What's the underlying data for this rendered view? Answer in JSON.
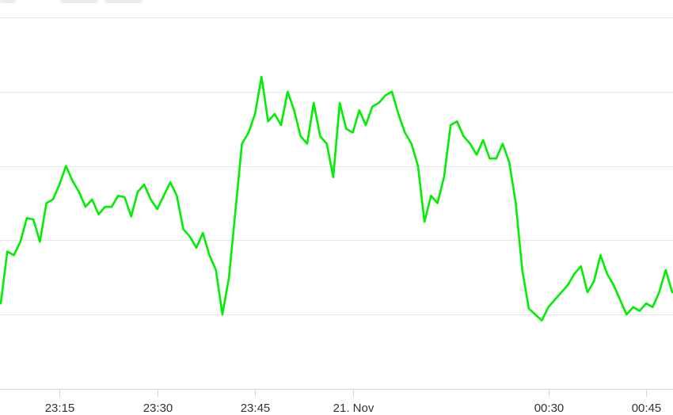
{
  "toolbar": {
    "tabs": [
      "",
      "",
      ""
    ]
  },
  "chart_data": {
    "type": "line",
    "title": "",
    "xlabel": "",
    "ylabel": "",
    "xlim": [
      "2023-11-20T23:06",
      "2023-11-21T00:49"
    ],
    "ylim": [
      0,
      5
    ],
    "grid": true,
    "legend": "none",
    "line_color": "#00ee00",
    "x_ticks": [
      {
        "label": "23:15",
        "time": "2023-11-20T23:15"
      },
      {
        "label": "23:30",
        "time": "2023-11-20T23:30"
      },
      {
        "label": "23:45",
        "time": "2023-11-20T23:45"
      },
      {
        "label": "21. Nov",
        "time": "2023-11-21T00:00"
      },
      {
        "label": "00:30",
        "time": "2023-11-21T00:30"
      },
      {
        "label": "00:45",
        "time": "2023-11-21T00:45"
      }
    ],
    "series": [
      {
        "values": [
          [
            "2023-11-20T23:06",
            1.15
          ],
          [
            "2023-11-20T23:07",
            1.85
          ],
          [
            "2023-11-20T23:08",
            1.8
          ],
          [
            "2023-11-20T23:09",
            1.98
          ],
          [
            "2023-11-20T23:10",
            2.3
          ],
          [
            "2023-11-20T23:11",
            2.28
          ],
          [
            "2023-11-20T23:12",
            1.98
          ],
          [
            "2023-11-20T23:13",
            2.5
          ],
          [
            "2023-11-20T23:14",
            2.55
          ],
          [
            "2023-11-20T23:15",
            2.75
          ],
          [
            "2023-11-20T23:16",
            3.0
          ],
          [
            "2023-11-20T23:17",
            2.8
          ],
          [
            "2023-11-20T23:18",
            2.65
          ],
          [
            "2023-11-20T23:19",
            2.45
          ],
          [
            "2023-11-20T23:20",
            2.55
          ],
          [
            "2023-11-20T23:21",
            2.35
          ],
          [
            "2023-11-20T23:22",
            2.45
          ],
          [
            "2023-11-20T23:23",
            2.45
          ],
          [
            "2023-11-20T23:24",
            2.6
          ],
          [
            "2023-11-20T23:25",
            2.58
          ],
          [
            "2023-11-20T23:26",
            2.32
          ],
          [
            "2023-11-20T23:27",
            2.65
          ],
          [
            "2023-11-20T23:28",
            2.75
          ],
          [
            "2023-11-20T23:29",
            2.55
          ],
          [
            "2023-11-20T23:30",
            2.42
          ],
          [
            "2023-11-20T23:31",
            2.6
          ],
          [
            "2023-11-20T23:32",
            2.78
          ],
          [
            "2023-11-20T23:33",
            2.6
          ],
          [
            "2023-11-20T23:34",
            2.15
          ],
          [
            "2023-11-20T23:35",
            2.05
          ],
          [
            "2023-11-20T23:36",
            1.9
          ],
          [
            "2023-11-20T23:37",
            2.1
          ],
          [
            "2023-11-20T23:38",
            1.8
          ],
          [
            "2023-11-20T23:39",
            1.6
          ],
          [
            "2023-11-20T23:40",
            1.0
          ],
          [
            "2023-11-20T23:41",
            1.5
          ],
          [
            "2023-11-20T23:42",
            2.4
          ],
          [
            "2023-11-20T23:43",
            3.3
          ],
          [
            "2023-11-20T23:44",
            3.45
          ],
          [
            "2023-11-20T23:45",
            3.7
          ],
          [
            "2023-11-20T23:46",
            4.2
          ],
          [
            "2023-11-20T23:47",
            3.6
          ],
          [
            "2023-11-20T23:48",
            3.7
          ],
          [
            "2023-11-20T23:49",
            3.55
          ],
          [
            "2023-11-20T23:50",
            4.0
          ],
          [
            "2023-11-20T23:51",
            3.75
          ],
          [
            "2023-11-20T23:52",
            3.4
          ],
          [
            "2023-11-20T23:53",
            3.3
          ],
          [
            "2023-11-20T23:54",
            3.85
          ],
          [
            "2023-11-20T23:55",
            3.4
          ],
          [
            "2023-11-20T23:56",
            3.3
          ],
          [
            "2023-11-20T23:57",
            2.85
          ],
          [
            "2023-11-20T23:58",
            3.85
          ],
          [
            "2023-11-20T23:59",
            3.5
          ],
          [
            "2023-11-21T00:00",
            3.45
          ],
          [
            "2023-11-21T00:01",
            3.75
          ],
          [
            "2023-11-21T00:02",
            3.55
          ],
          [
            "2023-11-21T00:03",
            3.8
          ],
          [
            "2023-11-21T00:04",
            3.85
          ],
          [
            "2023-11-21T00:05",
            3.95
          ],
          [
            "2023-11-21T00:06",
            4.0
          ],
          [
            "2023-11-21T00:07",
            3.7
          ],
          [
            "2023-11-21T00:08",
            3.45
          ],
          [
            "2023-11-21T00:09",
            3.3
          ],
          [
            "2023-11-21T00:10",
            3.0
          ],
          [
            "2023-11-21T00:11",
            2.25
          ],
          [
            "2023-11-21T00:12",
            2.6
          ],
          [
            "2023-11-21T00:13",
            2.5
          ],
          [
            "2023-11-21T00:14",
            2.85
          ],
          [
            "2023-11-21T00:15",
            3.55
          ],
          [
            "2023-11-21T00:16",
            3.6
          ],
          [
            "2023-11-21T00:17",
            3.4
          ],
          [
            "2023-11-21T00:18",
            3.3
          ],
          [
            "2023-11-21T00:19",
            3.15
          ],
          [
            "2023-11-21T00:20",
            3.35
          ],
          [
            "2023-11-21T00:21",
            3.1
          ],
          [
            "2023-11-21T00:22",
            3.1
          ],
          [
            "2023-11-21T00:23",
            3.3
          ],
          [
            "2023-11-21T00:24",
            3.05
          ],
          [
            "2023-11-21T00:25",
            2.5
          ],
          [
            "2023-11-21T00:26",
            1.6
          ],
          [
            "2023-11-21T00:27",
            1.08
          ],
          [
            "2023-11-21T00:28",
            1.0
          ],
          [
            "2023-11-21T00:29",
            0.92
          ],
          [
            "2023-11-21T00:30",
            1.1
          ],
          [
            "2023-11-21T00:31",
            1.2
          ],
          [
            "2023-11-21T00:32",
            1.3
          ],
          [
            "2023-11-21T00:33",
            1.4
          ],
          [
            "2023-11-21T00:34",
            1.55
          ],
          [
            "2023-11-21T00:35",
            1.65
          ],
          [
            "2023-11-21T00:36",
            1.3
          ],
          [
            "2023-11-21T00:37",
            1.45
          ],
          [
            "2023-11-21T00:38",
            1.8
          ],
          [
            "2023-11-21T00:39",
            1.55
          ],
          [
            "2023-11-21T00:40",
            1.4
          ],
          [
            "2023-11-21T00:41",
            1.2
          ],
          [
            "2023-11-21T00:42",
            1.0
          ],
          [
            "2023-11-21T00:43",
            1.1
          ],
          [
            "2023-11-21T00:44",
            1.05
          ],
          [
            "2023-11-21T00:45",
            1.15
          ],
          [
            "2023-11-21T00:46",
            1.1
          ],
          [
            "2023-11-21T00:47",
            1.3
          ],
          [
            "2023-11-21T00:48",
            1.6
          ],
          [
            "2023-11-21T00:49",
            1.3
          ]
        ]
      }
    ]
  }
}
